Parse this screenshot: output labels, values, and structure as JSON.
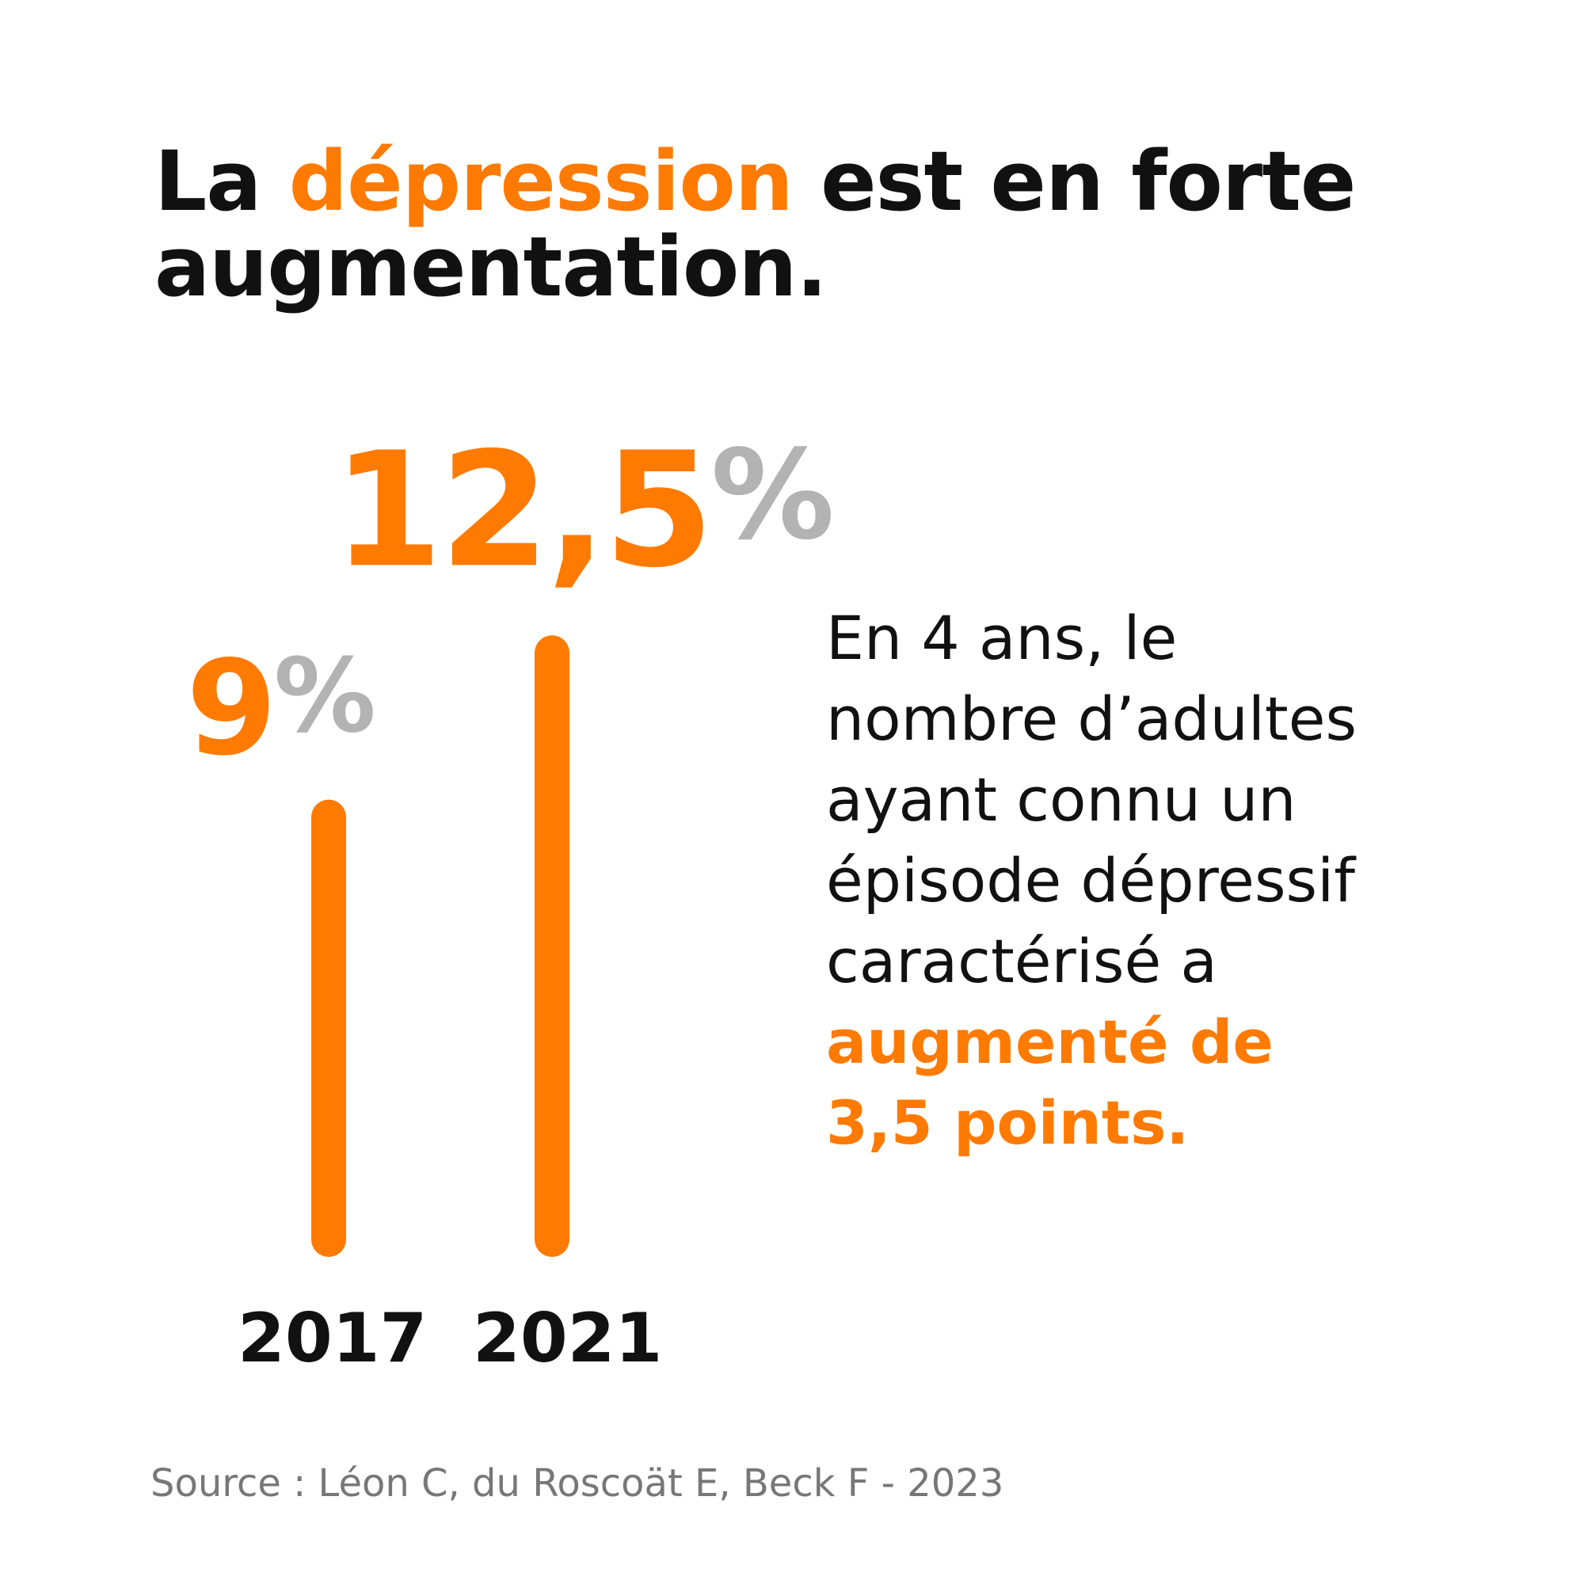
{
  "title": {
    "prefix": "La ",
    "highlight": "dépression",
    "suffix": " est en forte augmentation."
  },
  "chart_data": {
    "type": "bar",
    "categories": [
      "2017",
      "2021"
    ],
    "values": [
      9,
      12.5
    ],
    "value_labels": [
      "9",
      "12,5"
    ],
    "unit": "%",
    "ylim": [
      0,
      13.5
    ],
    "title": "La dépression est en forte augmentation."
  },
  "description": {
    "lines": [
      "En 4 ans, le",
      "nombre d’adultes",
      "ayant connu un",
      "épisode dépressif",
      "caractérisé a"
    ],
    "highlight_lines": [
      "augmenté de",
      "3,5 points."
    ]
  },
  "source": "Source : Léon C, du Roscoät E, Beck F - 2023",
  "colors": {
    "accent": "#FF7A00",
    "percent": "#B3B3B3",
    "text": "#111111",
    "source": "#777777"
  }
}
